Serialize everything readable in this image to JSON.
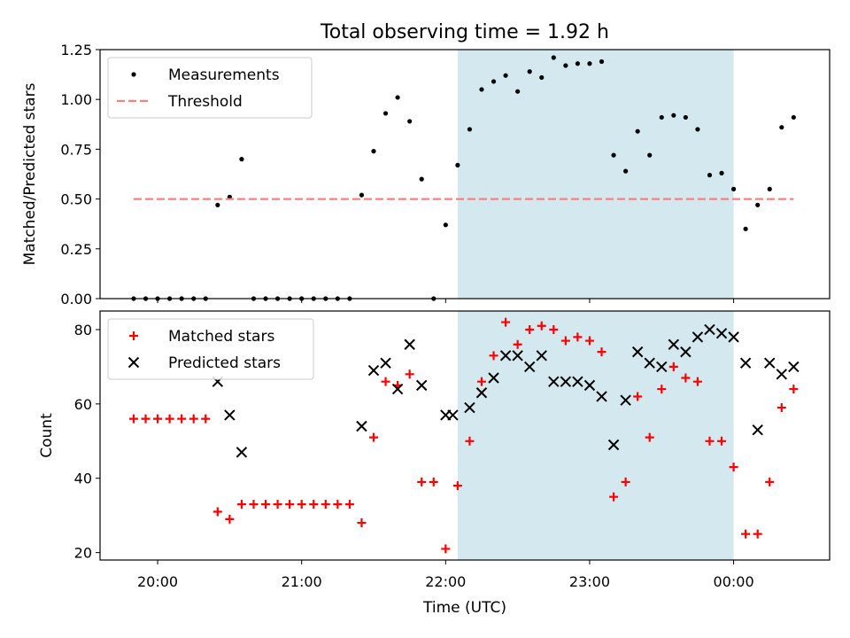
{
  "figure": {
    "title": "Total observing time = 1.92 h",
    "xlabel": "Time (UTC)"
  },
  "x_ticks": [
    "20:00",
    "21:00",
    "22:00",
    "23:00",
    "00:00"
  ],
  "colors": {
    "shade": "#d3e9ef",
    "measurements": "#000000",
    "threshold": "#ff7f7f",
    "matched": "#ff0000",
    "predicted": "#000000"
  },
  "chart_data": [
    {
      "type": "scatter",
      "ylabel": "Matched/Predicted stars",
      "ylim": [
        0,
        1.25
      ],
      "y_ticks": [
        "0.00",
        "0.25",
        "0.50",
        "0.75",
        "1.00",
        "1.25"
      ],
      "x_range": [
        "19:36",
        "00:40"
      ],
      "shaded_interval": [
        "22:05",
        "00:00"
      ],
      "legend_placement": "upper left",
      "grid": false,
      "series": [
        {
          "name": "Measurements",
          "marker": "dot",
          "points": [
            [
              "19:50",
              0
            ],
            [
              "19:55",
              0
            ],
            [
              "20:00",
              0
            ],
            [
              "20:05",
              0
            ],
            [
              "20:10",
              0
            ],
            [
              "20:15",
              0
            ],
            [
              "20:20",
              0
            ],
            [
              "20:25",
              0.47
            ],
            [
              "20:30",
              0.51
            ],
            [
              "20:35",
              0.7
            ],
            [
              "20:40",
              0
            ],
            [
              "20:45",
              0
            ],
            [
              "20:50",
              0
            ],
            [
              "20:55",
              0
            ],
            [
              "21:00",
              0
            ],
            [
              "21:05",
              0
            ],
            [
              "21:10",
              0
            ],
            [
              "21:15",
              0
            ],
            [
              "21:20",
              0
            ],
            [
              "21:25",
              0.52
            ],
            [
              "21:30",
              0.74
            ],
            [
              "21:35",
              0.93
            ],
            [
              "21:40",
              1.01
            ],
            [
              "21:45",
              0.89
            ],
            [
              "21:50",
              0.6
            ],
            [
              "21:55",
              0
            ],
            [
              "22:00",
              0.37
            ],
            [
              "22:05",
              0.67
            ],
            [
              "22:10",
              0.85
            ],
            [
              "22:15",
              1.05
            ],
            [
              "22:20",
              1.09
            ],
            [
              "22:25",
              1.12
            ],
            [
              "22:30",
              1.04
            ],
            [
              "22:35",
              1.14
            ],
            [
              "22:40",
              1.11
            ],
            [
              "22:45",
              1.21
            ],
            [
              "22:50",
              1.17
            ],
            [
              "22:55",
              1.18
            ],
            [
              "23:00",
              1.18
            ],
            [
              "23:05",
              1.19
            ],
            [
              "23:10",
              0.72
            ],
            [
              "23:15",
              0.64
            ],
            [
              "23:20",
              0.84
            ],
            [
              "23:25",
              0.72
            ],
            [
              "23:30",
              0.91
            ],
            [
              "23:35",
              0.92
            ],
            [
              "23:40",
              0.91
            ],
            [
              "23:45",
              0.85
            ],
            [
              "23:50",
              0.62
            ],
            [
              "23:55",
              0.63
            ],
            [
              "00:00",
              0.55
            ],
            [
              "00:05",
              0.35
            ],
            [
              "00:10",
              0.47
            ],
            [
              "00:15",
              0.55
            ],
            [
              "00:20",
              0.86
            ],
            [
              "00:25",
              0.91
            ]
          ]
        },
        {
          "name": "Threshold",
          "style": "dashed-line",
          "points": [
            [
              "19:50",
              0.5
            ],
            [
              "00:25",
              0.5
            ]
          ]
        }
      ]
    },
    {
      "type": "scatter",
      "ylabel": "Count",
      "ylim": [
        18,
        85
      ],
      "y_ticks": [
        "20",
        "40",
        "60",
        "80"
      ],
      "x_range": [
        "19:36",
        "00:40"
      ],
      "shaded_interval": [
        "22:05",
        "00:00"
      ],
      "legend_placement": "upper left",
      "grid": false,
      "series": [
        {
          "name": "Matched stars",
          "marker": "plus",
          "points": [
            [
              "19:50",
              56
            ],
            [
              "19:55",
              56
            ],
            [
              "20:00",
              56
            ],
            [
              "20:05",
              56
            ],
            [
              "20:10",
              56
            ],
            [
              "20:15",
              56
            ],
            [
              "20:20",
              56
            ],
            [
              "20:25",
              31
            ],
            [
              "20:30",
              29
            ],
            [
              "20:35",
              33
            ],
            [
              "20:40",
              33
            ],
            [
              "20:45",
              33
            ],
            [
              "20:50",
              33
            ],
            [
              "20:55",
              33
            ],
            [
              "21:00",
              33
            ],
            [
              "21:05",
              33
            ],
            [
              "21:10",
              33
            ],
            [
              "21:15",
              33
            ],
            [
              "21:20",
              33
            ],
            [
              "21:25",
              28
            ],
            [
              "21:30",
              51
            ],
            [
              "21:35",
              66
            ],
            [
              "21:40",
              65
            ],
            [
              "21:45",
              68
            ],
            [
              "21:50",
              39
            ],
            [
              "21:55",
              39
            ],
            [
              "22:00",
              21
            ],
            [
              "22:05",
              38
            ],
            [
              "22:10",
              50
            ],
            [
              "22:15",
              66
            ],
            [
              "22:20",
              73
            ],
            [
              "22:25",
              82
            ],
            [
              "22:30",
              76
            ],
            [
              "22:35",
              80
            ],
            [
              "22:40",
              81
            ],
            [
              "22:45",
              80
            ],
            [
              "22:50",
              77
            ],
            [
              "22:55",
              78
            ],
            [
              "23:00",
              77
            ],
            [
              "23:05",
              74
            ],
            [
              "23:10",
              35
            ],
            [
              "23:15",
              39
            ],
            [
              "23:20",
              62
            ],
            [
              "23:25",
              51
            ],
            [
              "23:30",
              64
            ],
            [
              "23:35",
              70
            ],
            [
              "23:40",
              67
            ],
            [
              "23:45",
              66
            ],
            [
              "23:50",
              50
            ],
            [
              "23:55",
              50
            ],
            [
              "00:00",
              43
            ],
            [
              "00:05",
              25
            ],
            [
              "00:10",
              25
            ],
            [
              "00:15",
              39
            ],
            [
              "00:20",
              59
            ],
            [
              "00:25",
              64
            ]
          ]
        },
        {
          "name": "Predicted stars",
          "marker": "x",
          "points": [
            [
              "20:25",
              66
            ],
            [
              "20:30",
              57
            ],
            [
              "20:35",
              47
            ],
            [
              "21:25",
              54
            ],
            [
              "21:30",
              69
            ],
            [
              "21:35",
              71
            ],
            [
              "21:40",
              64
            ],
            [
              "21:45",
              76
            ],
            [
              "21:50",
              65
            ],
            [
              "22:00",
              57
            ],
            [
              "22:03",
              57
            ],
            [
              "22:10",
              59
            ],
            [
              "22:15",
              63
            ],
            [
              "22:20",
              67
            ],
            [
              "22:25",
              73
            ],
            [
              "22:30",
              73
            ],
            [
              "22:35",
              70
            ],
            [
              "22:40",
              73
            ],
            [
              "22:45",
              66
            ],
            [
              "22:50",
              66
            ],
            [
              "22:55",
              66
            ],
            [
              "23:00",
              65
            ],
            [
              "23:05",
              62
            ],
            [
              "23:10",
              49
            ],
            [
              "23:15",
              61
            ],
            [
              "23:20",
              74
            ],
            [
              "23:25",
              71
            ],
            [
              "23:30",
              70
            ],
            [
              "23:35",
              76
            ],
            [
              "23:40",
              74
            ],
            [
              "23:45",
              78
            ],
            [
              "23:50",
              80
            ],
            [
              "23:55",
              79
            ],
            [
              "00:00",
              78
            ],
            [
              "00:05",
              71
            ],
            [
              "00:10",
              53
            ],
            [
              "00:15",
              71
            ],
            [
              "00:20",
              68
            ],
            [
              "00:25",
              70
            ]
          ]
        }
      ]
    }
  ]
}
